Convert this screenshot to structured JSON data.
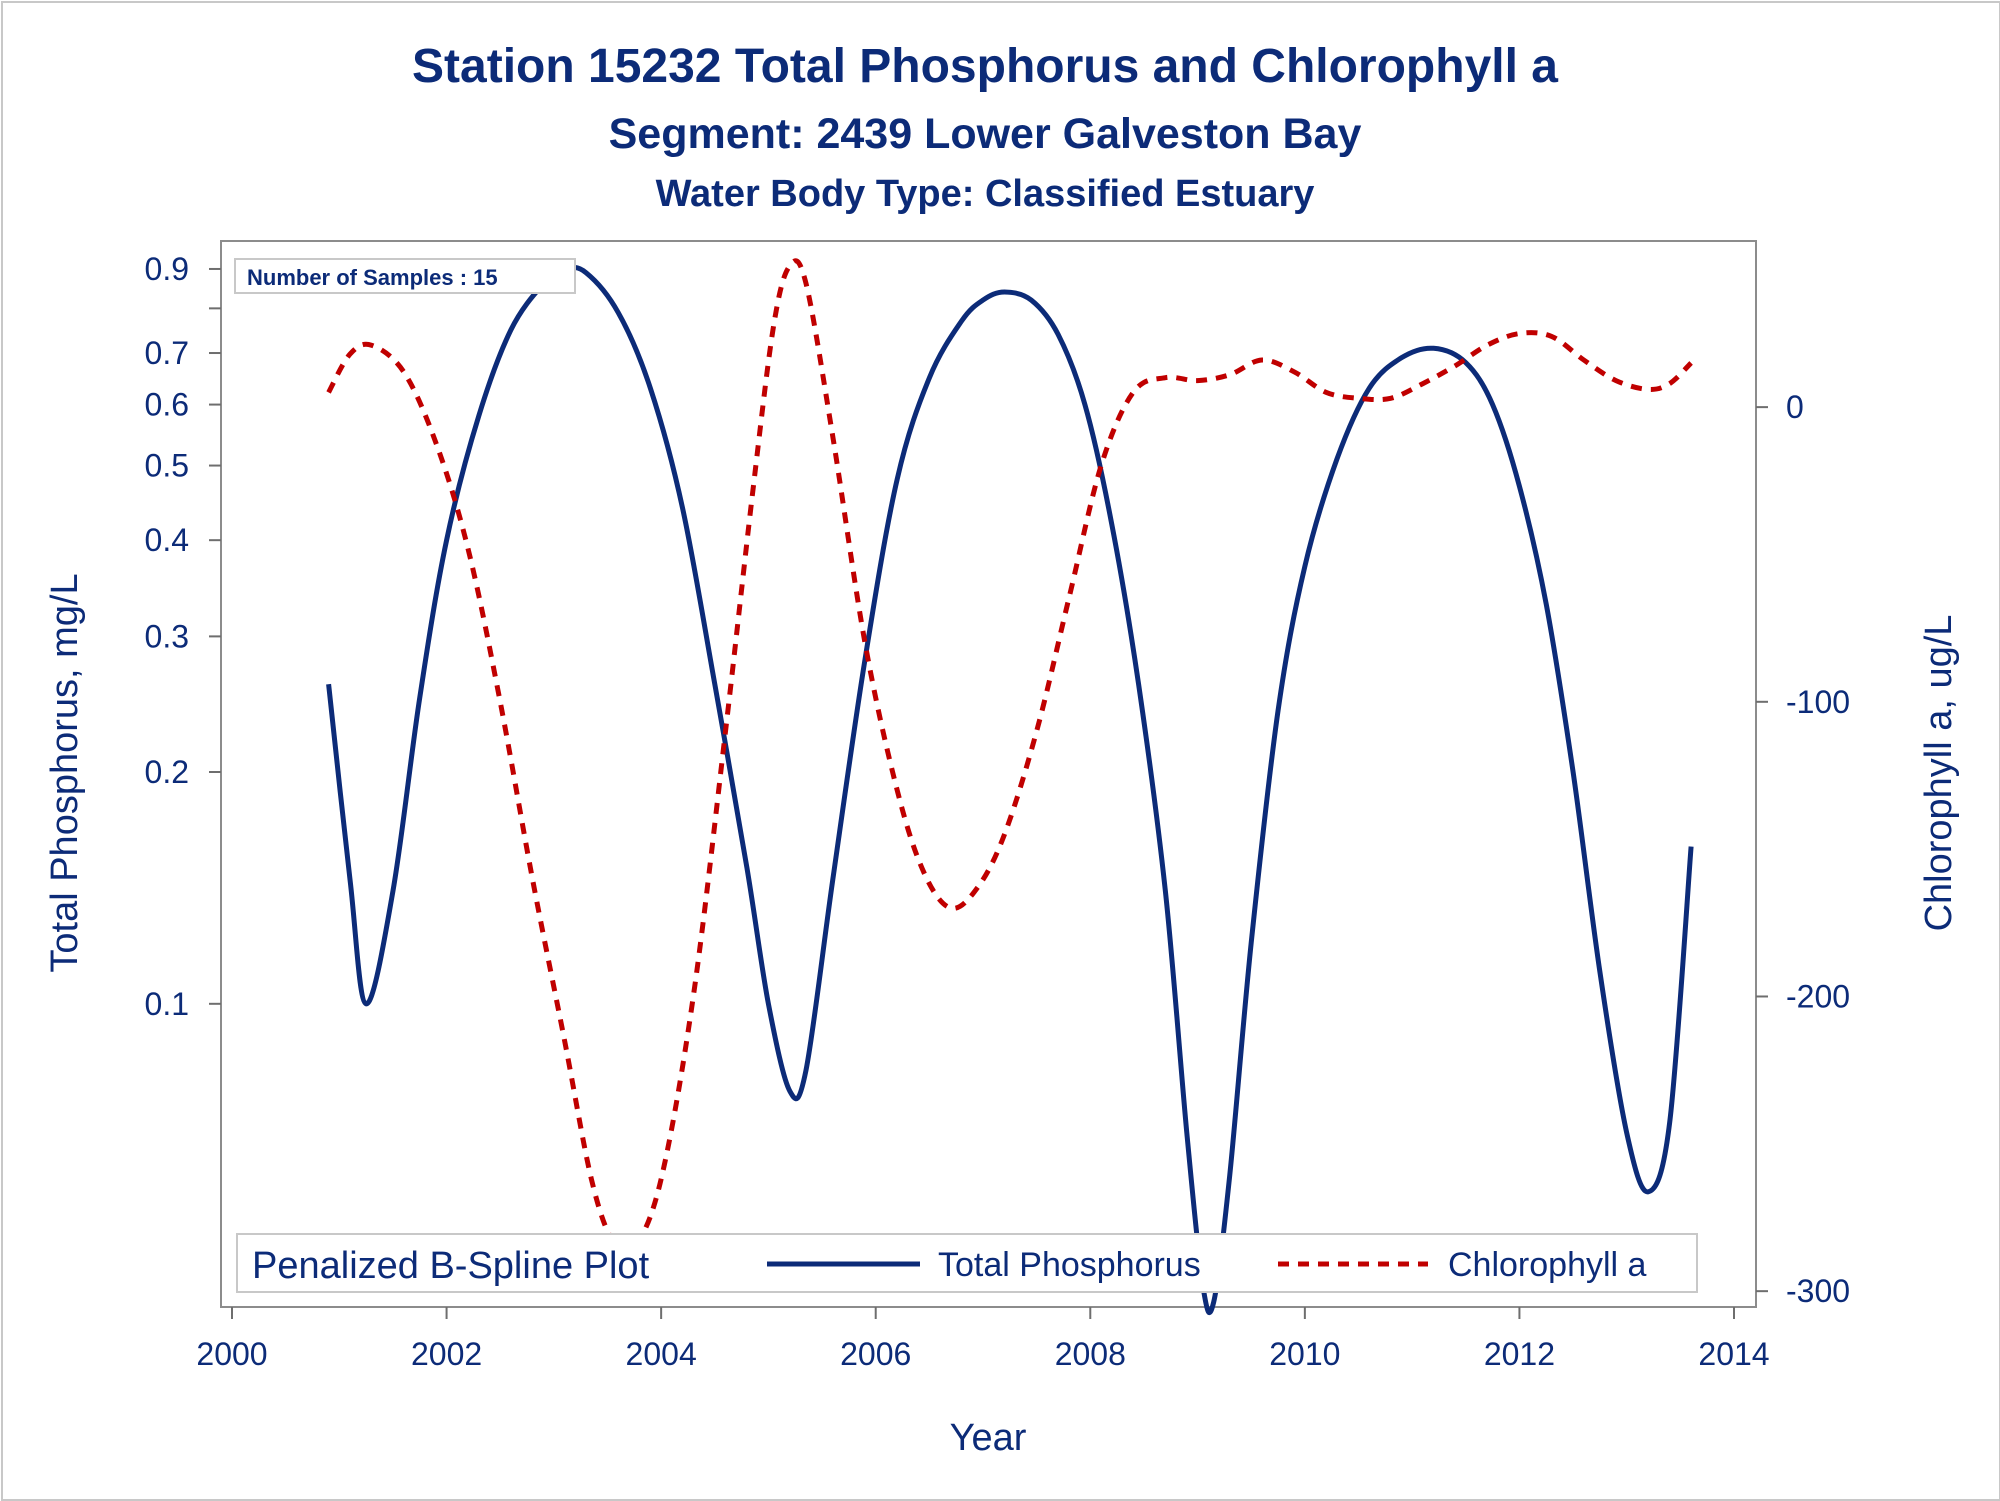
{
  "chart_data": {
    "type": "line",
    "title": "Station 15232  Total Phosphorus and Chlorophyll a",
    "subtitle": "Segment: 2439  Lower Galveston Bay",
    "subtitle2": "Water Body Type: Classified Estuary",
    "inset": "Number of Samples : 15",
    "xlabel": "Year",
    "ylabel": "Total Phosphorus, mg/L",
    "y2label": "Chlorophyll a, ug/L",
    "xlim": [
      2000,
      2014
    ],
    "ylim": [
      0.041,
      0.93
    ],
    "yscale": "log",
    "y2lim": [
      -303,
      54
    ],
    "xticks": [
      "2000",
      "2002",
      "2004",
      "2006",
      "2008",
      "2010",
      "2012",
      "2014"
    ],
    "yticks": [
      "0.1",
      "0.2",
      "0.3",
      "0.4",
      "0.5",
      "0.6",
      "0.7",
      "0.9"
    ],
    "yticks_unlabeled": [
      0.8
    ],
    "y2ticks": [
      "-300",
      "-200",
      "-100",
      "0"
    ],
    "legend": {
      "title": "Penalized B-Spline Plot",
      "placement": "bottom-inside",
      "items": [
        "Total Phosphorus",
        "Chlorophyll a"
      ]
    },
    "series": [
      {
        "name": "Total Phosphorus",
        "axis": "left",
        "color": "#0c2b78",
        "style": "solid",
        "points": [
          [
            2000.9,
            0.26
          ],
          [
            2001.1,
            0.145
          ],
          [
            2001.25,
            0.1
          ],
          [
            2001.5,
            0.14
          ],
          [
            2001.75,
            0.25
          ],
          [
            2002.0,
            0.4
          ],
          [
            2002.3,
            0.58
          ],
          [
            2002.6,
            0.75
          ],
          [
            2002.9,
            0.86
          ],
          [
            2003.1,
            0.9
          ],
          [
            2003.3,
            0.89
          ],
          [
            2003.6,
            0.79
          ],
          [
            2003.9,
            0.63
          ],
          [
            2004.2,
            0.44
          ],
          [
            2004.5,
            0.26
          ],
          [
            2004.8,
            0.15
          ],
          [
            2005.0,
            0.1
          ],
          [
            2005.2,
            0.077
          ],
          [
            2005.35,
            0.082
          ],
          [
            2005.6,
            0.145
          ],
          [
            2005.9,
            0.28
          ],
          [
            2006.2,
            0.48
          ],
          [
            2006.5,
            0.65
          ],
          [
            2006.8,
            0.77
          ],
          [
            2007.0,
            0.82
          ],
          [
            2007.2,
            0.84
          ],
          [
            2007.45,
            0.82
          ],
          [
            2007.7,
            0.74
          ],
          [
            2007.95,
            0.6
          ],
          [
            2008.2,
            0.42
          ],
          [
            2008.45,
            0.26
          ],
          [
            2008.7,
            0.14
          ],
          [
            2008.9,
            0.068
          ],
          [
            2009.05,
            0.043
          ],
          [
            2009.15,
            0.041
          ],
          [
            2009.3,
            0.06
          ],
          [
            2009.5,
            0.12
          ],
          [
            2009.75,
            0.24
          ],
          [
            2010.0,
            0.37
          ],
          [
            2010.3,
            0.51
          ],
          [
            2010.6,
            0.63
          ],
          [
            2010.9,
            0.69
          ],
          [
            2011.2,
            0.71
          ],
          [
            2011.5,
            0.68
          ],
          [
            2011.75,
            0.6
          ],
          [
            2012.0,
            0.47
          ],
          [
            2012.25,
            0.33
          ],
          [
            2012.5,
            0.2
          ],
          [
            2012.75,
            0.11
          ],
          [
            2013.0,
            0.068
          ],
          [
            2013.2,
            0.057
          ],
          [
            2013.4,
            0.07
          ],
          [
            2013.6,
            0.16
          ]
        ]
      },
      {
        "name": "Chlorophyll a",
        "axis": "right",
        "color": "#c00000",
        "style": "dashed",
        "points": [
          [
            2000.9,
            5
          ],
          [
            2001.1,
            18
          ],
          [
            2001.3,
            21
          ],
          [
            2001.6,
            12
          ],
          [
            2001.9,
            -12
          ],
          [
            2002.2,
            -48
          ],
          [
            2002.5,
            -100
          ],
          [
            2002.8,
            -160
          ],
          [
            2003.1,
            -215
          ],
          [
            2003.35,
            -262
          ],
          [
            2003.55,
            -283
          ],
          [
            2003.75,
            -285
          ],
          [
            2004.0,
            -262
          ],
          [
            2004.3,
            -200
          ],
          [
            2004.6,
            -110
          ],
          [
            2004.85,
            -30
          ],
          [
            2005.05,
            28
          ],
          [
            2005.2,
            48
          ],
          [
            2005.35,
            42
          ],
          [
            2005.6,
            -10
          ],
          [
            2005.9,
            -80
          ],
          [
            2006.2,
            -130
          ],
          [
            2006.45,
            -158
          ],
          [
            2006.7,
            -170
          ],
          [
            2006.95,
            -163
          ],
          [
            2007.2,
            -145
          ],
          [
            2007.5,
            -110
          ],
          [
            2007.8,
            -65
          ],
          [
            2008.1,
            -20
          ],
          [
            2008.4,
            5
          ],
          [
            2008.7,
            10
          ],
          [
            2009.0,
            9
          ],
          [
            2009.3,
            11
          ],
          [
            2009.6,
            16
          ],
          [
            2009.9,
            12
          ],
          [
            2010.2,
            5
          ],
          [
            2010.5,
            3
          ],
          [
            2010.8,
            3
          ],
          [
            2011.1,
            8
          ],
          [
            2011.4,
            14
          ],
          [
            2011.7,
            21
          ],
          [
            2012.0,
            25
          ],
          [
            2012.3,
            24
          ],
          [
            2012.6,
            16
          ],
          [
            2012.9,
            9
          ],
          [
            2013.2,
            6
          ],
          [
            2013.4,
            8
          ],
          [
            2013.6,
            15
          ]
        ]
      }
    ]
  }
}
